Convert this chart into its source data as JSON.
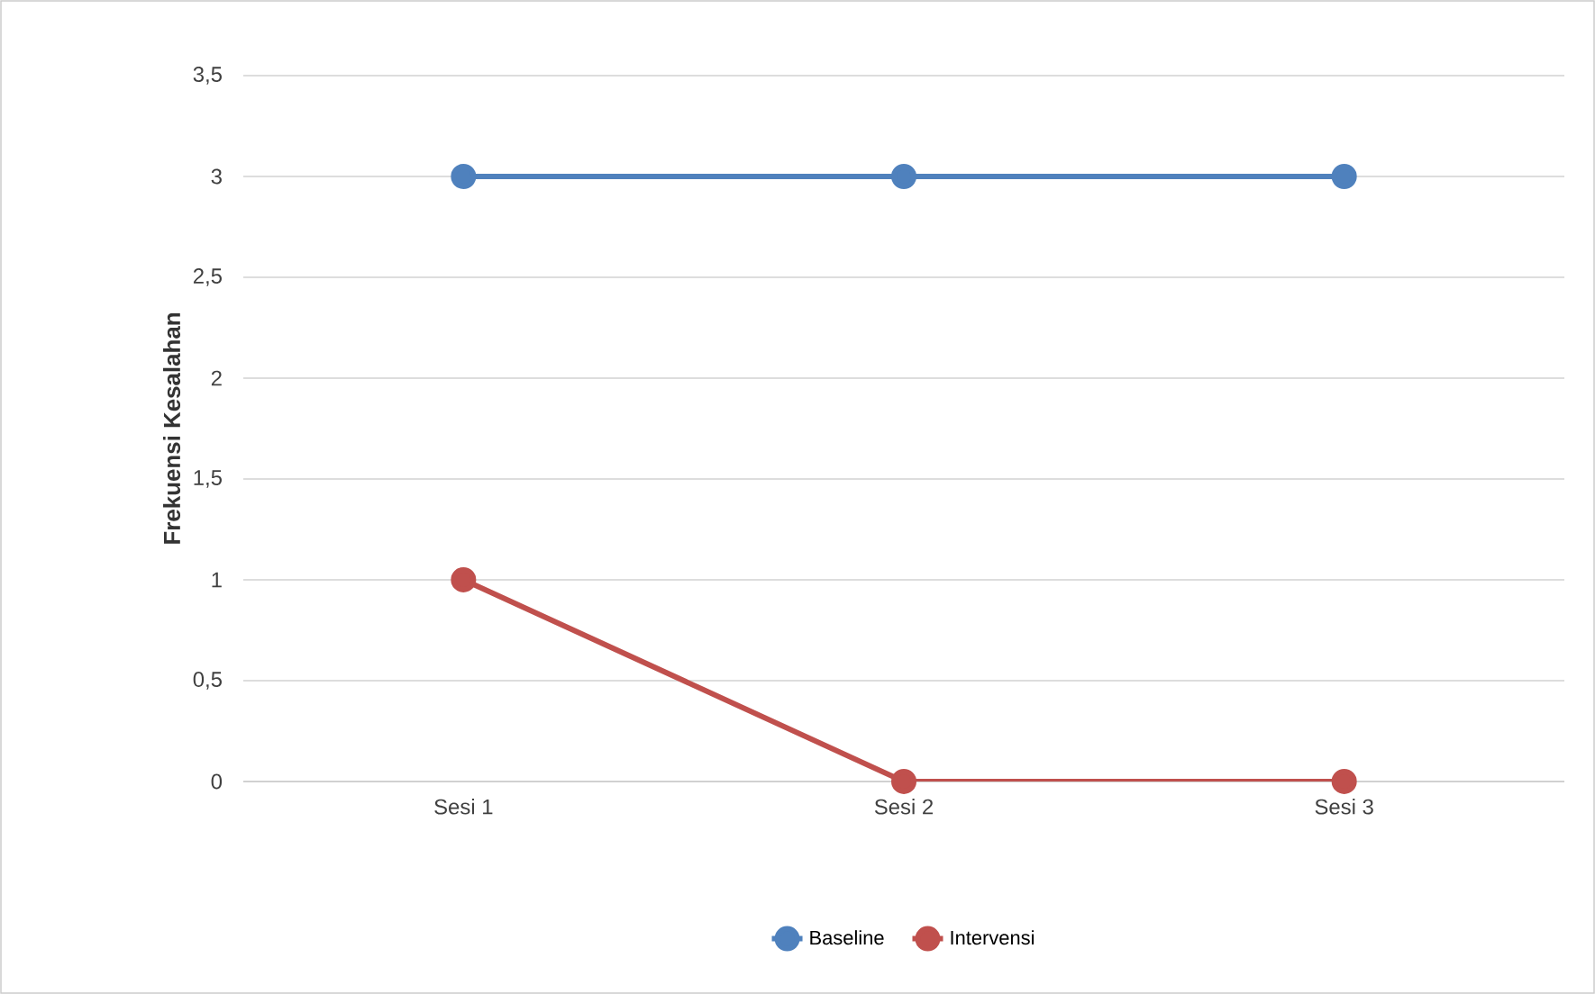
{
  "chart_data": {
    "type": "line",
    "ylabel": "Frekuensi Kesalahan",
    "categories": [
      "Sesi 1",
      "Sesi 2",
      "Sesi 3"
    ],
    "series": [
      {
        "name": "Baseline",
        "color": "#4f81bd",
        "values": [
          3,
          3,
          3
        ]
      },
      {
        "name": "Intervensi",
        "color": "#c0504d",
        "values": [
          1,
          0,
          0
        ]
      }
    ],
    "ylim": [
      0,
      3.5
    ],
    "yticks": [
      0,
      {
        "value": 0.5,
        "label": "0,5"
      },
      1,
      {
        "value": 1.5,
        "label": "1,5"
      },
      2,
      {
        "value": 2.5,
        "label": "2,5"
      },
      3,
      {
        "value": 3.5,
        "label": "3,5"
      }
    ],
    "grid": "y",
    "legend": "bottom",
    "marker": "circle",
    "line_style": "solid"
  }
}
